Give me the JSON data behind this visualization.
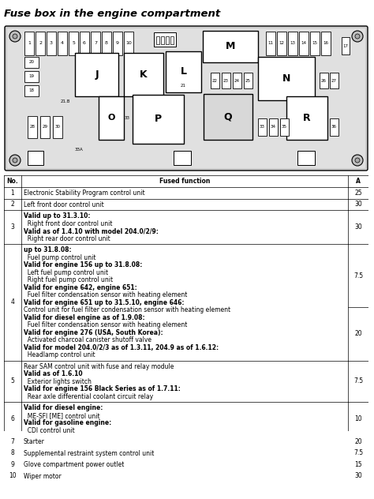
{
  "title": "Fuse box in the engine compartment",
  "title_fontsize": 9.5,
  "bg_color": "#ffffff",
  "rows": [
    {
      "no": "1",
      "lines": [
        [
          "Electronic Stability Program control unit",
          false
        ]
      ],
      "a": "25",
      "split_a": null
    },
    {
      "no": "2",
      "lines": [
        [
          "Left front door control unit",
          false
        ]
      ],
      "a": "30",
      "split_a": null
    },
    {
      "no": "3",
      "lines": [
        [
          "Valid up to 31.3.10:",
          true
        ],
        [
          "  Right front door control unit",
          false
        ],
        [
          "Valid as of 1.4.10 with model 204.0/2/9:",
          true
        ],
        [
          "  Right rear door control unit",
          false
        ]
      ],
      "a": "30",
      "split_a": null
    },
    {
      "no": "4",
      "lines": [
        [
          "up to 31.8.08:",
          true
        ],
        [
          "  Fuel pump control unit",
          false
        ],
        [
          "Valid for engine 156 up to 31.8.08:",
          true
        ],
        [
          "  Left fuel pump control unit",
          false
        ],
        [
          "  Right fuel pump control unit",
          false
        ],
        [
          "Valid for engine 642, engine 651:",
          true
        ],
        [
          "  Fuel filter condensation sensor with heating element",
          false
        ],
        [
          "Valid for engine 651 up to 31.5.10, engine 646:",
          true
        ],
        [
          "Control unit for fuel filter condensation sensor with heating element",
          false
        ],
        [
          "Valid for diesel engine as of 1.9.08:",
          true
        ],
        [
          "  Fuel filter condensation sensor with heating element",
          false
        ],
        [
          "Valid for engine 276 (USA, South Korea):",
          true
        ],
        [
          "  Activated charcoal canister shutoff valve",
          false
        ],
        [
          "Valid for model 204.0/2/3 as of 1.3.11, 204.9 as of 1.6.12:",
          true
        ],
        [
          "  Headlamp control unit",
          false
        ]
      ],
      "a": "",
      "split_a": {
        "split_after": 8,
        "a_top": "7.5",
        "a_bottom": "20"
      }
    },
    {
      "no": "5",
      "lines": [
        [
          "Rear SAM control unit with fuse and relay module",
          false
        ],
        [
          "Valid as of 1.6.10",
          true
        ],
        [
          "  Exterior lights switch",
          false
        ],
        [
          "Valid for engine 156 Black Series as of 1.7.11:",
          true
        ],
        [
          "  Rear axle differential coolant circuit relay",
          false
        ]
      ],
      "a": "7.5",
      "split_a": null
    },
    {
      "no": "6",
      "lines": [
        [
          "Valid for diesel engine:",
          true
        ],
        [
          "  ME-SFI [ME] control unit",
          false
        ],
        [
          "Valid for gasoline engine:",
          true
        ],
        [
          "  CDI control unit",
          false
        ]
      ],
      "a": "10",
      "split_a": null
    },
    {
      "no": "7",
      "lines": [
        [
          "Starter",
          false
        ]
      ],
      "a": "20",
      "split_a": null
    },
    {
      "no": "8",
      "lines": [
        [
          "Supplemental restraint system control unit",
          false
        ]
      ],
      "a": "7.5",
      "split_a": null
    },
    {
      "no": "9",
      "lines": [
        [
          "Glove compartment power outlet",
          false
        ]
      ],
      "a": "15",
      "split_a": null
    },
    {
      "no": "10",
      "lines": [
        [
          "Wiper motor",
          false
        ]
      ],
      "a": "30",
      "split_a": null
    }
  ]
}
